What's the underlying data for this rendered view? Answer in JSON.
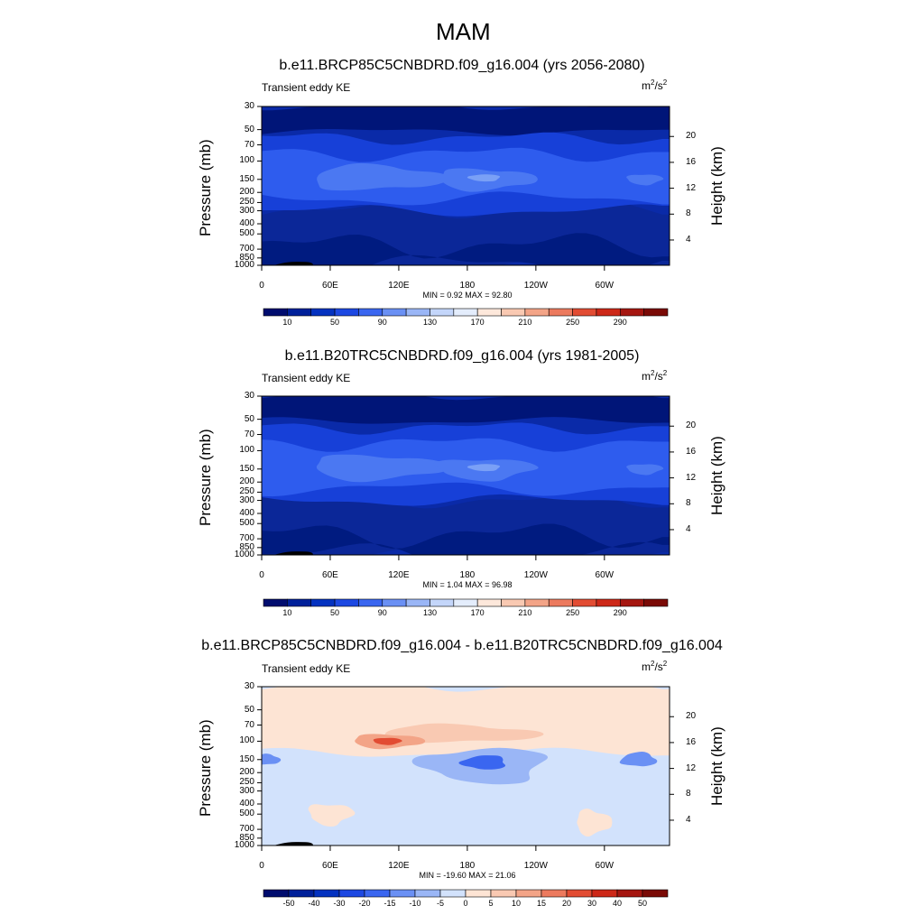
{
  "page": {
    "title": "MAM"
  },
  "chart_data": [
    {
      "type": "heatmap",
      "title": "b.e11.BRCP85C5CNBDRD.f09_g16.004 (yrs 2056-2080)",
      "left_string": "Transient eddy KE",
      "units_base": "m",
      "units_sup1": "2",
      "units_mid": "/s",
      "units_sup2": "2",
      "ylabel": "Pressure (mb)",
      "ylabel_right": "Height (km)",
      "xticks": [
        "0",
        "60E",
        "120E",
        "180",
        "120W",
        "60W"
      ],
      "xticks_deg": [
        0,
        60,
        120,
        180,
        240,
        300
      ],
      "xlim": [
        0,
        357
      ],
      "yticks": [
        "30",
        "50",
        "70",
        "100",
        "150",
        "200",
        "250",
        "300",
        "400",
        "500",
        "700",
        "850",
        "1000"
      ],
      "yticks_mb": [
        30,
        50,
        70,
        100,
        150,
        200,
        250,
        300,
        400,
        500,
        700,
        850,
        1000
      ],
      "ylim_mb": [
        1000,
        30
      ],
      "height_ticks": [
        "4",
        "8",
        "12",
        "16",
        "20"
      ],
      "height_km": [
        4,
        8,
        12,
        16,
        20
      ],
      "stats": "MIN =   0.92  MAX =  92.80",
      "colorbar_labels": [
        "10",
        "50",
        "90",
        "130",
        "170",
        "210",
        "250",
        "290"
      ],
      "colorbar_colors": [
        "#000c6e",
        "#00209a",
        "#0432c0",
        "#1c48e2",
        "#3a66f0",
        "#6a90f4",
        "#9ab6f6",
        "#c4d6fa",
        "#e4edfc",
        "#fde8db",
        "#f9c9b2",
        "#f3a487",
        "#ec7a5e",
        "#e24c33",
        "#cd2818",
        "#a51610",
        "#7a0a06"
      ],
      "colorbar_ticks_at": [
        1,
        3,
        5,
        7,
        9,
        11,
        13,
        15
      ]
    },
    {
      "type": "heatmap",
      "title": "b.e11.B20TRC5CNBDRD.f09_g16.004 (yrs 1981-2005)",
      "left_string": "Transient eddy KE",
      "units_base": "m",
      "units_sup1": "2",
      "units_mid": "/s",
      "units_sup2": "2",
      "ylabel": "Pressure (mb)",
      "ylabel_right": "Height (km)",
      "xticks": [
        "0",
        "60E",
        "120E",
        "180",
        "120W",
        "60W"
      ],
      "xticks_deg": [
        0,
        60,
        120,
        180,
        240,
        300
      ],
      "xlim": [
        0,
        357
      ],
      "yticks": [
        "30",
        "50",
        "70",
        "100",
        "150",
        "200",
        "250",
        "300",
        "400",
        "500",
        "700",
        "850",
        "1000"
      ],
      "yticks_mb": [
        30,
        50,
        70,
        100,
        150,
        200,
        250,
        300,
        400,
        500,
        700,
        850,
        1000
      ],
      "ylim_mb": [
        1000,
        30
      ],
      "height_ticks": [
        "4",
        "8",
        "12",
        "16",
        "20"
      ],
      "height_km": [
        4,
        8,
        12,
        16,
        20
      ],
      "stats": "MIN =   1.04  MAX =  96.98",
      "colorbar_labels": [
        "10",
        "50",
        "90",
        "130",
        "170",
        "210",
        "250",
        "290"
      ],
      "colorbar_colors": [
        "#000c6e",
        "#00209a",
        "#0432c0",
        "#1c48e2",
        "#3a66f0",
        "#6a90f4",
        "#9ab6f6",
        "#c4d6fa",
        "#e4edfc",
        "#fde8db",
        "#f9c9b2",
        "#f3a487",
        "#ec7a5e",
        "#e24c33",
        "#cd2818",
        "#a51610",
        "#7a0a06"
      ],
      "colorbar_ticks_at": [
        1,
        3,
        5,
        7,
        9,
        11,
        13,
        15
      ]
    },
    {
      "type": "heatmap",
      "title": "b.e11.BRCP85C5CNBDRD.f09_g16.004 - b.e11.B20TRC5CNBDRD.f09_g16.004",
      "left_string": "Transient eddy KE",
      "units_base": "m",
      "units_sup1": "2",
      "units_mid": "/s",
      "units_sup2": "2",
      "ylabel": "Pressure (mb)",
      "ylabel_right": "Height (km)",
      "xticks": [
        "0",
        "60E",
        "120E",
        "180",
        "120W",
        "60W"
      ],
      "xticks_deg": [
        0,
        60,
        120,
        180,
        240,
        300
      ],
      "xlim": [
        0,
        357
      ],
      "yticks": [
        "30",
        "50",
        "70",
        "100",
        "150",
        "200",
        "250",
        "300",
        "400",
        "500",
        "700",
        "850",
        "1000"
      ],
      "yticks_mb": [
        30,
        50,
        70,
        100,
        150,
        200,
        250,
        300,
        400,
        500,
        700,
        850,
        1000
      ],
      "ylim_mb": [
        1000,
        30
      ],
      "height_ticks": [
        "4",
        "8",
        "12",
        "16",
        "20"
      ],
      "height_km": [
        4,
        8,
        12,
        16,
        20
      ],
      "stats": "MIN = -19.60  MAX =  21.06",
      "colorbar_labels": [
        "-50",
        "-40",
        "-30",
        "-20",
        "-15",
        "-10",
        "-5",
        "0",
        "5",
        "10",
        "15",
        "20",
        "30",
        "40",
        "50"
      ],
      "colorbar_colors": [
        "#000c6e",
        "#00209a",
        "#0432c0",
        "#1c48e2",
        "#3a66f0",
        "#6a90f4",
        "#9ab6f6",
        "#d2e2fc",
        "#fde4d4",
        "#f9c9b2",
        "#f3a487",
        "#ec7a5e",
        "#e24c33",
        "#cd2818",
        "#a51610",
        "#7a0a06"
      ],
      "colorbar_ticks_at": [
        1,
        2,
        3,
        4,
        5,
        6,
        7,
        8,
        9,
        10,
        11,
        12,
        13,
        14,
        15
      ]
    }
  ]
}
